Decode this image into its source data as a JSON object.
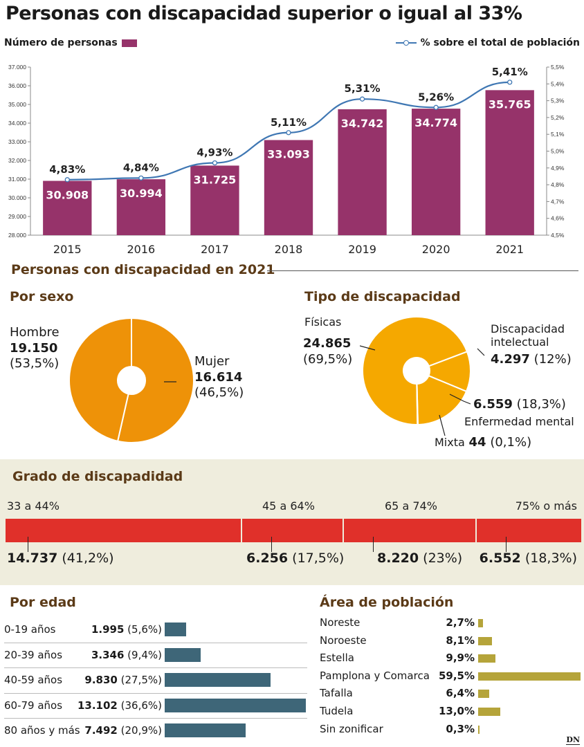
{
  "title": "Personas con discapacidad superior o igual al 33%",
  "legend": {
    "bars": "Número de personas",
    "line": "% sobre el total de población"
  },
  "colors": {
    "bar": "#96336a",
    "line": "#3f77b3",
    "pie_sexo": "#ee9208",
    "pie_tipo": "#f5a800",
    "grado": "#e0302a",
    "edad": "#3e6678",
    "area": "#b5a43a",
    "heading": "#5b3a17"
  },
  "section_2021": "Personas con discapacidad en 2021",
  "chart_data": [
    {
      "type": "bar",
      "title": "Personas con discapacidad superior o igual al 33%",
      "categories": [
        "2015",
        "2016",
        "2017",
        "2018",
        "2019",
        "2020",
        "2021"
      ],
      "series": [
        {
          "name": "Número de personas",
          "values": [
            30908,
            30994,
            31725,
            33093,
            34742,
            34774,
            35765
          ],
          "labels": [
            "30.908",
            "30.994",
            "31.725",
            "33.093",
            "34.742",
            "34.774",
            "35.765"
          ]
        },
        {
          "name": "% sobre el total de población",
          "type": "line",
          "values": [
            4.83,
            4.84,
            4.93,
            5.11,
            5.31,
            5.26,
            5.41
          ],
          "labels": [
            "4,83%",
            "4,84%",
            "4,93%",
            "5,11%",
            "5,31%",
            "5,26%",
            "5,41%"
          ]
        }
      ],
      "ylim": [
        28000,
        37000
      ],
      "yticks": [
        "28.000",
        "29.000",
        "30.000",
        "31.000",
        "32.000",
        "33.000",
        "34.000",
        "35.000",
        "36.000",
        "37.000"
      ],
      "y2lim": [
        4.5,
        5.5
      ],
      "y2ticks": [
        "4,5%",
        "4,6%",
        "4,7%",
        "4,8%",
        "4,9%",
        "5,0%",
        "5,1%",
        "5,2%",
        "5,3%",
        "5,4%",
        "5,5%"
      ],
      "grid": false,
      "legend": "top"
    },
    {
      "type": "pie",
      "title": "Por sexo",
      "slices": [
        {
          "name": "Hombre",
          "value": 19150,
          "label": "19.150",
          "pct": "(53,5%)"
        },
        {
          "name": "Mujer",
          "value": 16614,
          "label": "16.614",
          "pct": "(46,5%)"
        }
      ]
    },
    {
      "type": "pie",
      "title": "Tipo de discapacidad",
      "slices": [
        {
          "name": "Físicas",
          "value": 24865,
          "label": "24.865",
          "pct": "(69,5%)"
        },
        {
          "name": "Discapacidad intelectual",
          "value": 4297,
          "label": "4.297",
          "pct": "(12%)"
        },
        {
          "name": "Enfermedad mental",
          "value": 6559,
          "label": "6.559",
          "pct": "(18,3%)"
        },
        {
          "name": "Mixta",
          "value": 44,
          "label": "44",
          "pct": "(0,1%)"
        }
      ]
    },
    {
      "type": "bar",
      "title": "Grado de discapadidad",
      "categories": [
        "33 a 44%",
        "45 a 64%",
        "65 a 74%",
        "75% o más"
      ],
      "values": [
        14737,
        6256,
        8220,
        6552
      ],
      "labels": [
        "14.737",
        "6.256",
        "8.220",
        "6.552"
      ],
      "pcts": [
        "(41,2%)",
        "(17,5%)",
        "(23%)",
        "(18,3%)"
      ]
    },
    {
      "type": "bar",
      "title": "Por edad",
      "categories": [
        "0-19 años",
        "20-39 años",
        "40-59 años",
        "60-79 años",
        "80 años y más"
      ],
      "values": [
        1995,
        3346,
        9830,
        13102,
        7492
      ],
      "labels": [
        "1.995",
        "3.346",
        "9.830",
        "13.102",
        "7.492"
      ],
      "pcts": [
        "(5,6%)",
        "(9,4%)",
        "(27,5%)",
        "(36,6%)",
        "(20,9%)"
      ]
    },
    {
      "type": "bar",
      "title": "Área de población",
      "categories": [
        "Noreste",
        "Noroeste",
        "Estella",
        "Pamplona y Comarca",
        "Tafalla",
        "Tudela",
        "Sin zonificar"
      ],
      "values": [
        2.7,
        8.1,
        9.9,
        59.5,
        6.4,
        13.0,
        0.3
      ],
      "labels": [
        "2,7%",
        "8,1%",
        "9,9%",
        "59,5%",
        "6,4%",
        "13,0%",
        "0,3%"
      ]
    }
  ],
  "source": "DN"
}
